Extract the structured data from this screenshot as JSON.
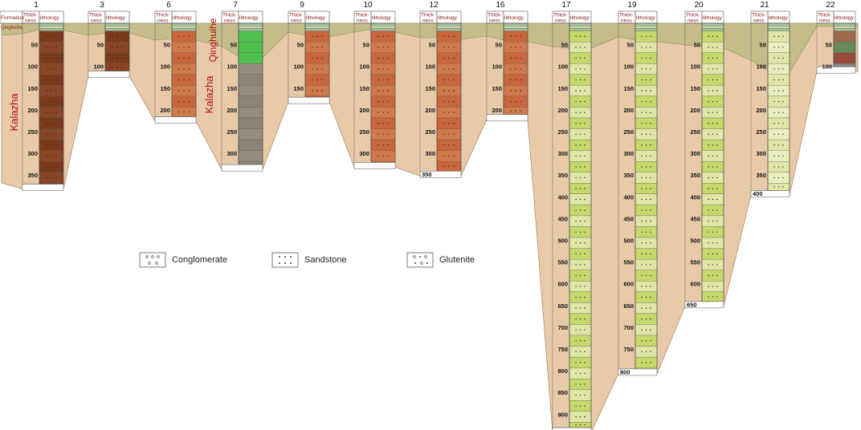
{
  "header_labels": {
    "formation": "Formation",
    "thickness": [
      "Thick-",
      "ness"
    ],
    "lithology": "lithology"
  },
  "formations": {
    "top": "Qinghuihe",
    "bottom": "Kalazha"
  },
  "colors": {
    "background_fill": "#e8c9a8",
    "qinghuihe_band": "#c4bd8a",
    "label_red": "#8b1a1a",
    "dark_brown": "#7a3a1e",
    "orange_brown": "#c9673c",
    "pale_yellow_green": "#dfe6a8",
    "yellow_green": "#c5d86a",
    "green": "#4fbf4f",
    "grey": "#8c8577",
    "sage": "#a7c29a"
  },
  "legend": [
    {
      "name": "Conglomerate",
      "symbol": "conglomerate"
    },
    {
      "name": "Sandstone",
      "symbol": "sandstone"
    },
    {
      "name": "Glutenite",
      "symbol": "glutenite"
    }
  ],
  "columns": [
    {
      "id": "1",
      "depth_labels": [
        "50",
        "100",
        "150",
        "200",
        "250",
        "300",
        "350"
      ],
      "formation_label": "Kalazha",
      "dominant": "dark_brown"
    },
    {
      "id": "3",
      "depth_labels": [
        "50",
        "100"
      ],
      "dominant": "dark_brown"
    },
    {
      "id": "6",
      "depth_labels": [
        "50",
        "100",
        "150",
        "200"
      ],
      "dominant": "orange_brown"
    },
    {
      "id": "7",
      "depth_labels": [
        "50",
        "100",
        "150",
        "200",
        "250",
        "300"
      ],
      "formation_labels": [
        "Qinghuihe",
        "Kalazha"
      ],
      "dominant": "grey"
    },
    {
      "id": "9",
      "depth_labels": [
        "50",
        "100",
        "150"
      ],
      "dominant": "orange_brown"
    },
    {
      "id": "10",
      "depth_labels": [
        "50",
        "100",
        "150",
        "200",
        "250",
        "300"
      ],
      "dominant": "orange_brown"
    },
    {
      "id": "12",
      "depth_labels": [
        "50",
        "100",
        "150",
        "200",
        "250",
        "300"
      ],
      "bottom_label": "350",
      "dominant": "orange_brown"
    },
    {
      "id": "16",
      "depth_labels": [
        "50",
        "100",
        "150",
        "200"
      ],
      "dominant": "orange_brown"
    },
    {
      "id": "17",
      "depth_labels": [
        "50",
        "100",
        "150",
        "200",
        "250",
        "300",
        "350",
        "400",
        "450",
        "500",
        "550",
        "600",
        "650",
        "700",
        "750",
        "800",
        "850",
        "900"
      ],
      "dominant": "yellow_green"
    },
    {
      "id": "19",
      "depth_labels": [
        "50",
        "100",
        "150",
        "200",
        "250",
        "300",
        "350",
        "400",
        "450",
        "500",
        "550",
        "600",
        "650",
        "700",
        "750"
      ],
      "bottom_label": "800",
      "dominant": "yellow_green"
    },
    {
      "id": "20",
      "depth_labels": [
        "50",
        "100",
        "150",
        "200",
        "250",
        "300",
        "350",
        "400",
        "450",
        "500",
        "550",
        "600"
      ],
      "bottom_label": "650",
      "dominant": "yellow_green"
    },
    {
      "id": "21",
      "depth_labels": [
        "50",
        "100",
        "150",
        "200",
        "250",
        "300",
        "350"
      ],
      "bottom_label": "400",
      "dominant": "pale_yellow_green"
    },
    {
      "id": "22",
      "depth_labels": [
        "50",
        "100"
      ],
      "dominant": "mixed"
    }
  ]
}
